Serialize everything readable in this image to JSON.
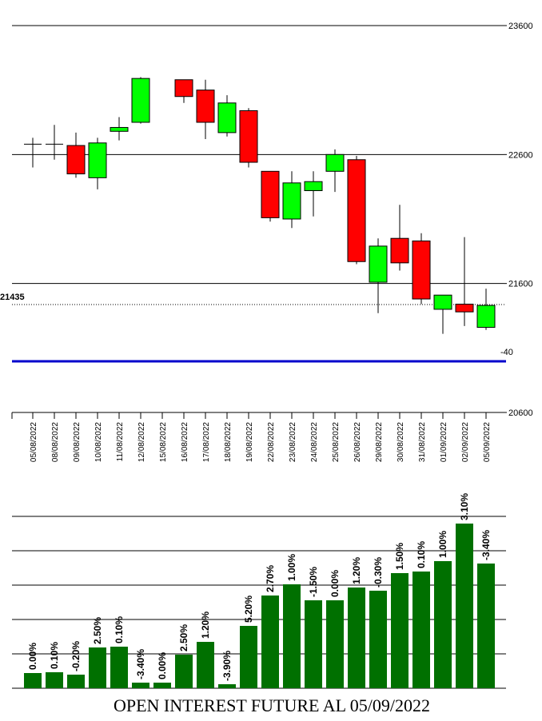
{
  "chart_data": [
    {
      "type": "candlestick",
      "y_ticks": [
        "23600",
        "22600",
        "21600",
        "20600"
      ],
      "ylim": [
        20600,
        23600
      ],
      "dates": [
        "05/08/2022",
        "08/08/2022",
        "09/08/2022",
        "10/08/2022",
        "11/08/2022",
        "12/08/2022",
        "15/08/2022",
        "16/08/2022",
        "17/08/2022",
        "18/08/2022",
        "19/08/2022",
        "22/08/2022",
        "23/08/2022",
        "24/08/2022",
        "25/08/2022",
        "26/08/2022",
        "29/08/2022",
        "30/08/2022",
        "31/08/2022",
        "01/09/2022",
        "02/09/2022",
        "05/09/2022"
      ],
      "candles": [
        {
          "o": 22680,
          "h": 22730,
          "l": 22500,
          "c": 22680
        },
        {
          "o": 22680,
          "h": 22830,
          "l": 22560,
          "c": 22680
        },
        {
          "o": 22670,
          "h": 22770,
          "l": 22420,
          "c": 22450
        },
        {
          "o": 22420,
          "h": 22730,
          "l": 22330,
          "c": 22690
        },
        {
          "o": 22780,
          "h": 22890,
          "l": 22710,
          "c": 22810
        },
        {
          "o": 22850,
          "h": 23200,
          "l": 22840,
          "c": 23190
        },
        null,
        {
          "o": 23180,
          "h": 23180,
          "l": 23000,
          "c": 23050
        },
        {
          "o": 23100,
          "h": 23180,
          "l": 22720,
          "c": 22850
        },
        {
          "o": 22770,
          "h": 23060,
          "l": 22740,
          "c": 23000
        },
        {
          "o": 22940,
          "h": 22960,
          "l": 22500,
          "c": 22540
        },
        {
          "o": 22470,
          "h": 22470,
          "l": 22080,
          "c": 22110
        },
        {
          "o": 22100,
          "h": 22470,
          "l": 22030,
          "c": 22380
        },
        {
          "o": 22320,
          "h": 22470,
          "l": 22120,
          "c": 22390
        },
        {
          "o": 22470,
          "h": 22640,
          "l": 22310,
          "c": 22600
        },
        {
          "o": 22560,
          "h": 22590,
          "l": 21750,
          "c": 21770
        },
        {
          "o": 21610,
          "h": 21950,
          "l": 21370,
          "c": 21890
        },
        {
          "o": 21950,
          "h": 22210,
          "l": 21700,
          "c": 21760
        },
        {
          "o": 21930,
          "h": 21990,
          "l": 21440,
          "c": 21480
        },
        {
          "o": 21400,
          "h": 21500,
          "l": 21210,
          "c": 21510
        },
        {
          "o": 21440,
          "h": 21960,
          "l": 21270,
          "c": 21380
        },
        {
          "o": 21260,
          "h": 21560,
          "l": 21240,
          "c": 21430
        }
      ],
      "reference_line": {
        "label": "21435",
        "value": 21435
      },
      "indicator": {
        "label": "-40"
      },
      "colors": {
        "up": "#00ff00",
        "down": "#ff0000",
        "indicator": "#0000cc"
      }
    },
    {
      "type": "bar",
      "title": "OPEN INTEREST FUTURE AL 05/09/2022",
      "categories": [
        "05/08/2022",
        "08/08/2022",
        "09/08/2022",
        "10/08/2022",
        "11/08/2022",
        "12/08/2022",
        "15/08/2022",
        "16/08/2022",
        "17/08/2022",
        "18/08/2022",
        "19/08/2022",
        "22/08/2022",
        "23/08/2022",
        "24/08/2022",
        "25/08/2022",
        "26/08/2022",
        "29/08/2022",
        "30/08/2022",
        "31/08/2022",
        "01/09/2022",
        "02/09/2022",
        "05/09/2022"
      ],
      "values": [
        19,
        20,
        17,
        51,
        52,
        7,
        7,
        42,
        58,
        5,
        78,
        116,
        130,
        110,
        110,
        126,
        122,
        144,
        146,
        159,
        206,
        156
      ],
      "labels": [
        "0.00%",
        "0.10%",
        "-0.20%",
        "2.50%",
        "0.10%",
        "-3.40%",
        "0.00%",
        "2.50%",
        "1.20%",
        "-3.90%",
        "5.20%",
        "2.70%",
        "1.00%",
        "-1.50%",
        "0.00%",
        "1.20%",
        "-0.30%",
        "1.50%",
        "0.10%",
        "1.00%",
        "3.10%",
        "-3.40%"
      ],
      "ylim": [
        0,
        215
      ],
      "color": "#007000"
    }
  ]
}
